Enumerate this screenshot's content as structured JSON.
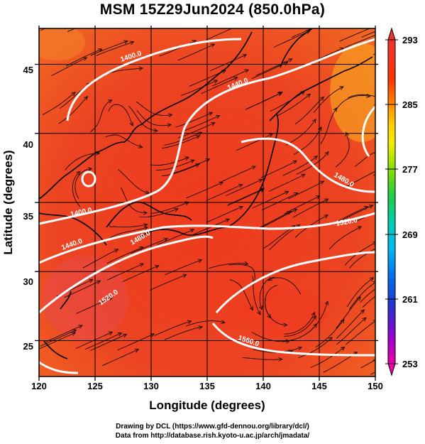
{
  "title": "MSM 15Z29Jun2024 (850.0hPa)",
  "axes": {
    "xlabel": "Longitude (degrees)",
    "ylabel": "Latitude  (degrees)",
    "xticks": [
      "120",
      "125",
      "130",
      "135",
      "140",
      "145",
      "150"
    ],
    "yticks": [
      "25",
      "30",
      "35",
      "40",
      "45"
    ]
  },
  "colorbar": {
    "ticks": [
      "293",
      "285",
      "277",
      "269",
      "261",
      "253"
    ],
    "colors": [
      "#ee00aa",
      "#9900cc",
      "#2233cc",
      "#0077ee",
      "#00bbee",
      "#00ccaa",
      "#22cc44",
      "#88dd00",
      "#eeee00",
      "#ffcc00",
      "#ff8800",
      "#ff3300",
      "#ee3333"
    ]
  },
  "contour_labels": [
    "1400.0",
    "1440.0",
    "1480.0",
    "1400.0",
    "1440.0",
    "1480.0",
    "1520.0",
    "1520.0",
    "1560.0"
  ],
  "credits": {
    "line1": "Drawing by DCL (https://www.gfd-dennou.org/library/dcl/)",
    "line2": "Data from http://database.rish.kyoto-u.ac.jp/arch/jmadata/"
  },
  "chart_data": {
    "type": "map",
    "title": "MSM 15Z29Jun2024 (850.0hPa)",
    "xlabel": "Longitude (degrees)",
    "ylabel": "Latitude  (degrees)",
    "xlim": [
      120,
      150
    ],
    "ylim": [
      22.4,
      47.6
    ],
    "xticks": [
      120,
      125,
      130,
      135,
      140,
      145,
      150
    ],
    "yticks": [
      25,
      30,
      35,
      40,
      45
    ],
    "grid": true,
    "fill_variable_range": [
      253,
      293
    ],
    "colorbar_ticks": [
      253,
      261,
      269,
      277,
      285,
      293
    ],
    "contours": [
      {
        "level": 1400.0,
        "label_pos": [
          124.3,
          46.1
        ]
      },
      {
        "level": 1440.0,
        "label_pos": [
          139.2,
          43.9
        ]
      },
      {
        "level": 1480.0,
        "label_pos": [
          147.5,
          37.5
        ]
      },
      {
        "level": 1400.0,
        "label_pos": [
          124.0,
          35.1
        ]
      },
      {
        "level": 1440.0,
        "label_pos": [
          122.0,
          33.5
        ]
      },
      {
        "level": 1480.0,
        "label_pos": [
          130.0,
          34.0
        ]
      },
      {
        "level": 1520.0,
        "label_pos": [
          147.8,
          34.3
        ]
      },
      {
        "level": 1520.0,
        "label_pos": [
          126.3,
          29.3
        ]
      },
      {
        "level": 1560.0,
        "label_pos": [
          138.5,
          24.5
        ]
      }
    ]
  }
}
